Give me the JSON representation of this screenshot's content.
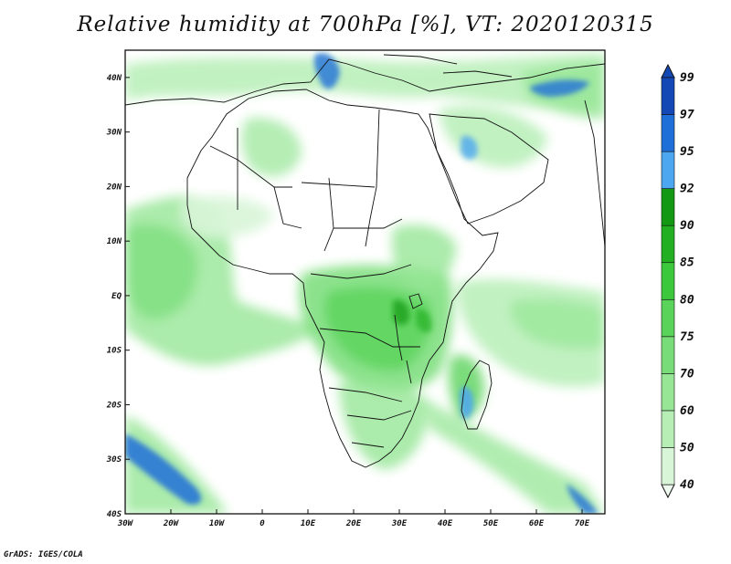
{
  "title": "Relative humidity at 700hPa [%], VT: 2020120315",
  "credit": "GrADS: IGES/COLA",
  "map": {
    "lon_range": [
      -30,
      75
    ],
    "lat_range": [
      -40,
      45
    ],
    "lon_ticks": [
      {
        "value": -30,
        "label": "30W"
      },
      {
        "value": -20,
        "label": "20W"
      },
      {
        "value": -10,
        "label": "10W"
      },
      {
        "value": 0,
        "label": "0"
      },
      {
        "value": 10,
        "label": "10E"
      },
      {
        "value": 20,
        "label": "20E"
      },
      {
        "value": 30,
        "label": "30E"
      },
      {
        "value": 40,
        "label": "40E"
      },
      {
        "value": 50,
        "label": "50E"
      },
      {
        "value": 60,
        "label": "60E"
      },
      {
        "value": 70,
        "label": "70E"
      }
    ],
    "lat_ticks": [
      {
        "value": 40,
        "label": "40N"
      },
      {
        "value": 30,
        "label": "30N"
      },
      {
        "value": 20,
        "label": "20N"
      },
      {
        "value": 10,
        "label": "10N"
      },
      {
        "value": 0,
        "label": "EQ"
      },
      {
        "value": -10,
        "label": "10S"
      },
      {
        "value": -20,
        "label": "20S"
      },
      {
        "value": -30,
        "label": "30S"
      },
      {
        "value": -40,
        "label": "40S"
      }
    ]
  },
  "colorbar": {
    "levels": [
      "40",
      "50",
      "60",
      "70",
      "75",
      "80",
      "85",
      "90",
      "92",
      "95",
      "97",
      "99"
    ],
    "colors": [
      "#f0fbf0",
      "#d8f5d8",
      "#b6eeb6",
      "#96e696",
      "#78dd78",
      "#5ad35a",
      "#3cc83c",
      "#22b022",
      "#129812",
      "#4da6f0",
      "#1e6fd8",
      "#1448b4"
    ]
  }
}
